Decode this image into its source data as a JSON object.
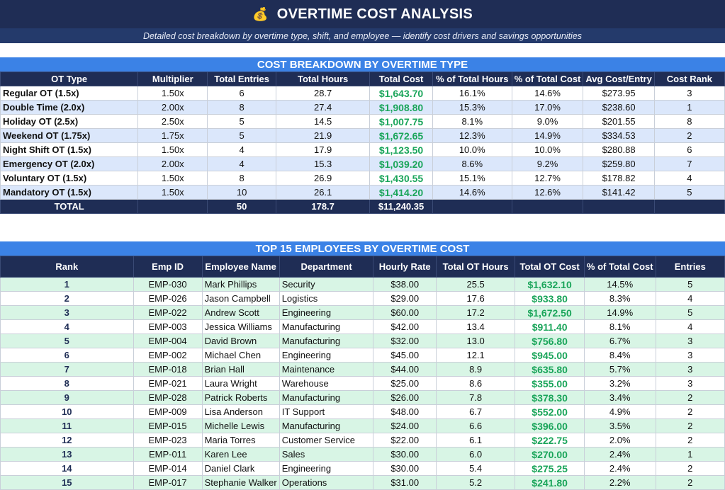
{
  "title": "OVERTIME COST ANALYSIS",
  "title_icon": "money-bag-icon",
  "subtitle": "Detailed cost breakdown by overtime type, shift, and employee — identify cost drivers and savings opportunities",
  "section1": {
    "header": "COST BREAKDOWN BY OVERTIME TYPE",
    "columns": [
      "OT Type",
      "Multiplier",
      "Total Entries",
      "Total Hours",
      "Total Cost",
      "% of Total Hours",
      "% of Total Cost",
      "Avg Cost/Entry",
      "Cost Rank"
    ],
    "rows": [
      [
        "Regular OT (1.5x)",
        "1.50x",
        "6",
        "28.7",
        "$1,643.70",
        "16.1%",
        "14.6%",
        "$273.95",
        "3"
      ],
      [
        "Double Time (2.0x)",
        "2.00x",
        "8",
        "27.4",
        "$1,908.80",
        "15.3%",
        "17.0%",
        "$238.60",
        "1"
      ],
      [
        "Holiday OT (2.5x)",
        "2.50x",
        "5",
        "14.5",
        "$1,007.75",
        "8.1%",
        "9.0%",
        "$201.55",
        "8"
      ],
      [
        "Weekend OT (1.75x)",
        "1.75x",
        "5",
        "21.9",
        "$1,672.65",
        "12.3%",
        "14.9%",
        "$334.53",
        "2"
      ],
      [
        "Night Shift OT (1.5x)",
        "1.50x",
        "4",
        "17.9",
        "$1,123.50",
        "10.0%",
        "10.0%",
        "$280.88",
        "6"
      ],
      [
        "Emergency OT (2.0x)",
        "2.00x",
        "4",
        "15.3",
        "$1,039.20",
        "8.6%",
        "9.2%",
        "$259.80",
        "7"
      ],
      [
        "Voluntary OT (1.5x)",
        "1.50x",
        "8",
        "26.9",
        "$1,430.55",
        "15.1%",
        "12.7%",
        "$178.82",
        "4"
      ],
      [
        "Mandatory OT (1.5x)",
        "1.50x",
        "10",
        "26.1",
        "$1,414.20",
        "14.6%",
        "12.6%",
        "$141.42",
        "5"
      ]
    ],
    "total": [
      "TOTAL",
      "",
      "50",
      "178.7",
      "$11,240.35",
      "",
      "",
      "",
      ""
    ]
  },
  "section2": {
    "header": "TOP 15 EMPLOYEES BY OVERTIME COST",
    "columns": [
      "Rank",
      "Emp ID",
      "Employee Name",
      "Department",
      "Hourly Rate",
      "Total OT Hours",
      "Total OT Cost",
      "% of Total Cost",
      "Entries"
    ],
    "rows": [
      [
        "1",
        "EMP-030",
        "Mark Phillips",
        "Security",
        "$38.00",
        "25.5",
        "$1,632.10",
        "14.5%",
        "5"
      ],
      [
        "2",
        "EMP-026",
        "Jason Campbell",
        "Logistics",
        "$29.00",
        "17.6",
        "$933.80",
        "8.3%",
        "4"
      ],
      [
        "3",
        "EMP-022",
        "Andrew Scott",
        "Engineering",
        "$60.00",
        "17.2",
        "$1,672.50",
        "14.9%",
        "5"
      ],
      [
        "4",
        "EMP-003",
        "Jessica Williams",
        "Manufacturing",
        "$42.00",
        "13.4",
        "$911.40",
        "8.1%",
        "4"
      ],
      [
        "5",
        "EMP-004",
        "David Brown",
        "Manufacturing",
        "$32.00",
        "13.0",
        "$756.80",
        "6.7%",
        "3"
      ],
      [
        "6",
        "EMP-002",
        "Michael Chen",
        "Engineering",
        "$45.00",
        "12.1",
        "$945.00",
        "8.4%",
        "3"
      ],
      [
        "7",
        "EMP-018",
        "Brian Hall",
        "Maintenance",
        "$44.00",
        "8.9",
        "$635.80",
        "5.7%",
        "3"
      ],
      [
        "8",
        "EMP-021",
        "Laura Wright",
        "Warehouse",
        "$25.00",
        "8.6",
        "$355.00",
        "3.2%",
        "3"
      ],
      [
        "9",
        "EMP-028",
        "Patrick Roberts",
        "Manufacturing",
        "$26.00",
        "7.8",
        "$378.30",
        "3.4%",
        "2"
      ],
      [
        "10",
        "EMP-009",
        "Lisa Anderson",
        "IT Support",
        "$48.00",
        "6.7",
        "$552.00",
        "4.9%",
        "2"
      ],
      [
        "11",
        "EMP-015",
        "Michelle Lewis",
        "Manufacturing",
        "$24.00",
        "6.6",
        "$396.00",
        "3.5%",
        "2"
      ],
      [
        "12",
        "EMP-023",
        "Maria Torres",
        "Customer Service",
        "$22.00",
        "6.1",
        "$222.75",
        "2.0%",
        "2"
      ],
      [
        "13",
        "EMP-011",
        "Karen Lee",
        "Sales",
        "$30.00",
        "6.0",
        "$270.00",
        "2.4%",
        "1"
      ],
      [
        "14",
        "EMP-014",
        "Daniel Clark",
        "Engineering",
        "$30.00",
        "5.4",
        "$275.25",
        "2.4%",
        "2"
      ],
      [
        "15",
        "EMP-017",
        "Stephanie Walker",
        "Operations",
        "$31.00",
        "5.2",
        "$241.80",
        "2.2%",
        "2"
      ]
    ]
  }
}
